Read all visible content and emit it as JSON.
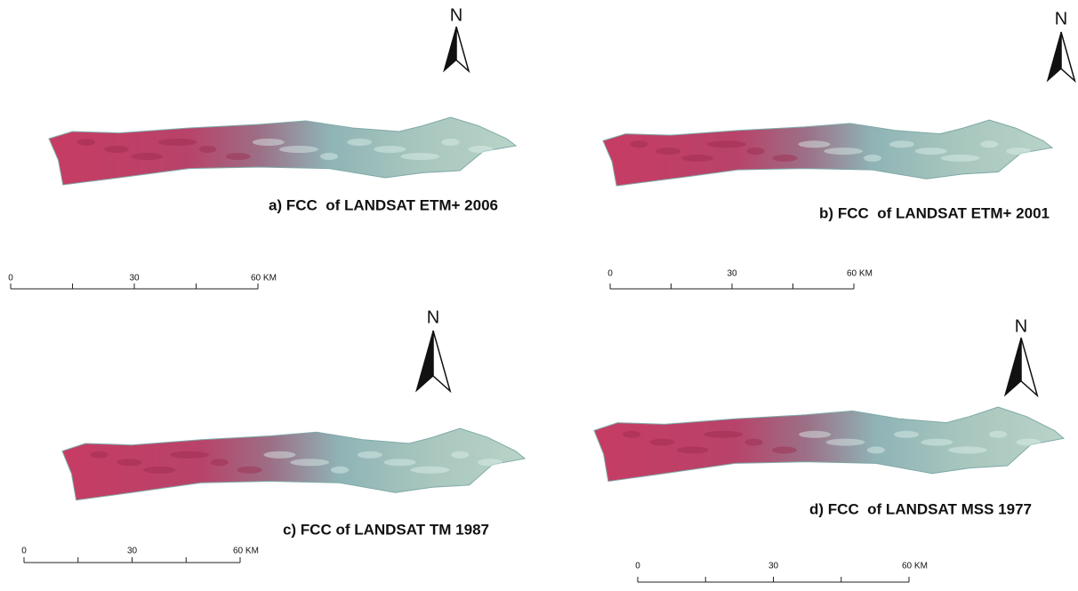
{
  "panels": [
    {
      "caption": "a) FCC  of LANDSAT ETM+ 2006",
      "north": "N",
      "scale_labels": [
        "0",
        "30",
        "60 KM"
      ]
    },
    {
      "caption": "b) FCC  of LANDSAT ETM+ 2001",
      "north": "N",
      "scale_labels": [
        "0",
        "30",
        "60 KM"
      ]
    },
    {
      "caption": "c) FCC of LANDSAT TM 1987",
      "north": "N",
      "scale_labels": [
        "0",
        "30",
        "60 KM"
      ]
    },
    {
      "caption": "d) FCC  of LANDSAT MSS 1977",
      "north": "N",
      "scale_labels": [
        "0",
        "30",
        "60 KM"
      ]
    }
  ]
}
